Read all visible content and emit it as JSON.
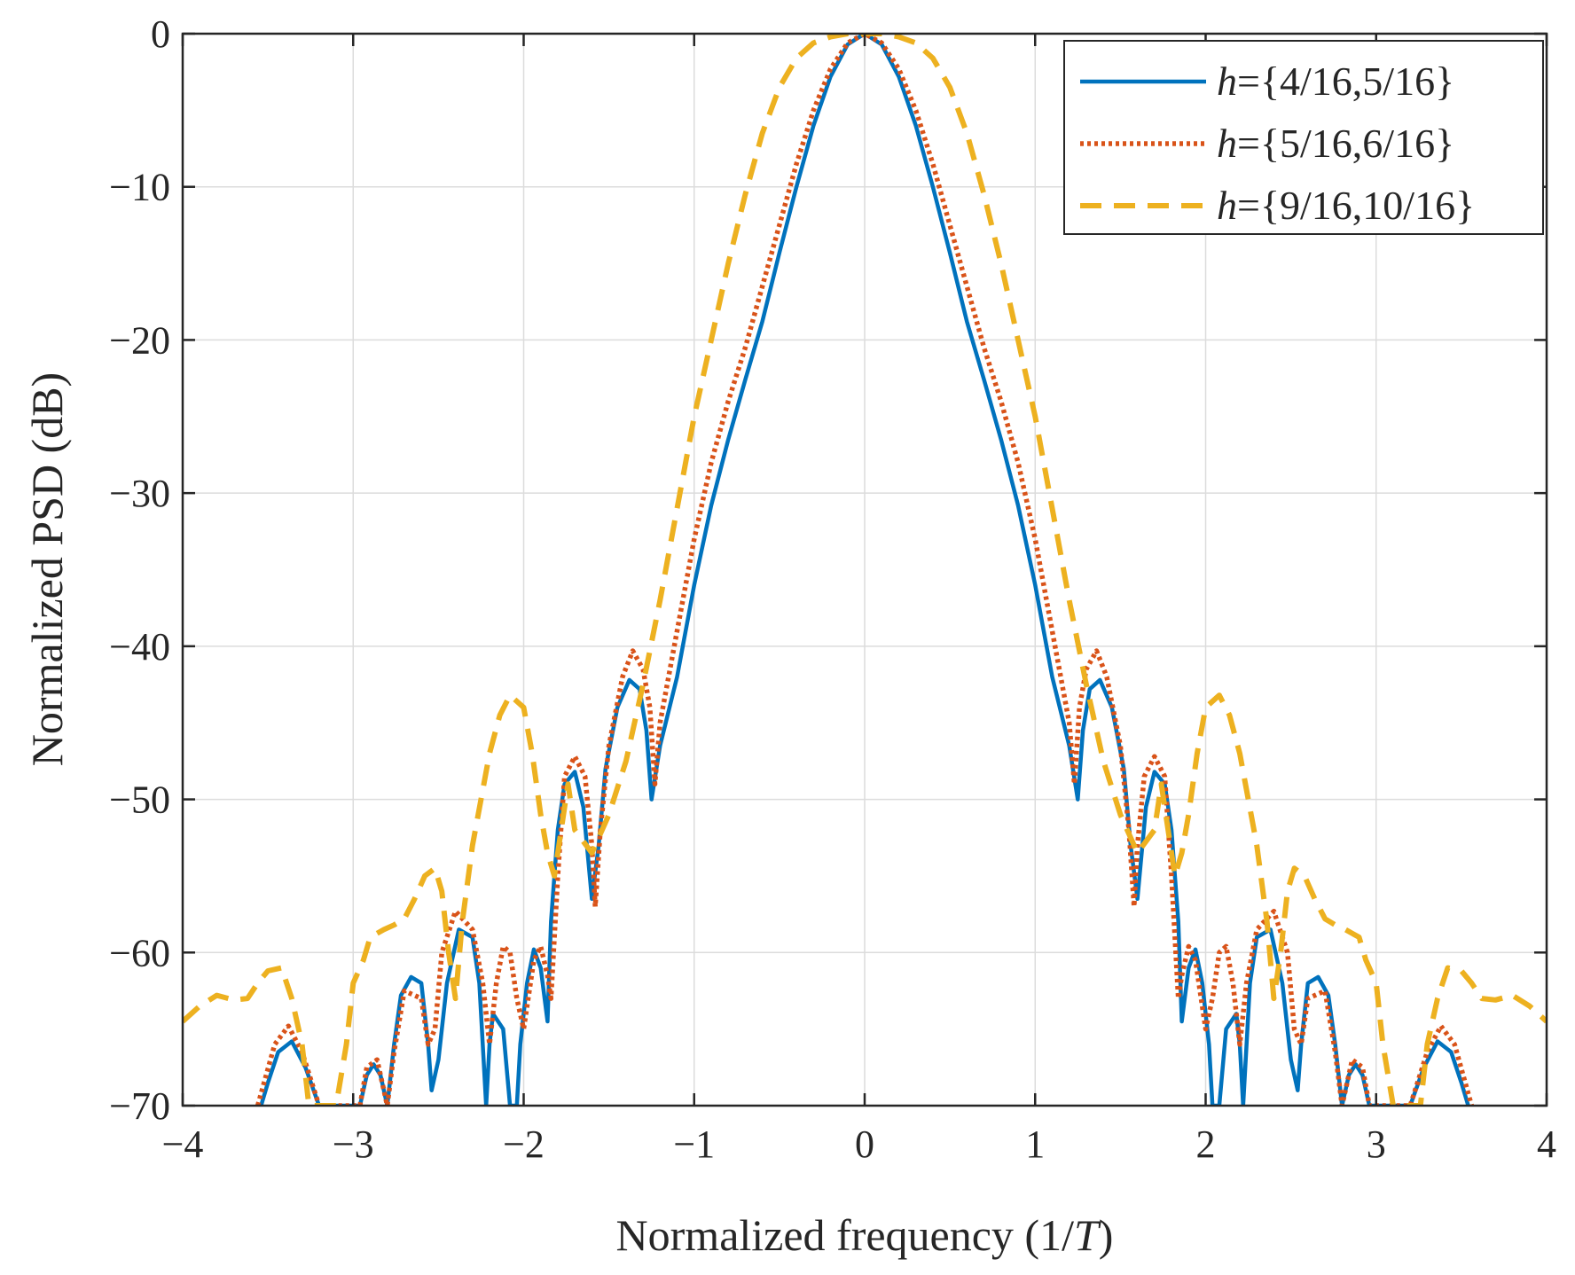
{
  "chart_data": {
    "type": "line",
    "title": "",
    "xlabel": "Normalized frequency (1/",
    "xlabel_italic": "T",
    "xlabel_suffix": ")",
    "ylabel": "Normalized PSD (dB)",
    "xlim": [
      -4,
      4
    ],
    "ylim": [
      -70,
      0
    ],
    "xticks": [
      -4,
      -3,
      -2,
      -1,
      0,
      1,
      2,
      3,
      4
    ],
    "xtick_labels": [
      "−4",
      "−3",
      "−2",
      "−1",
      "0",
      "1",
      "2",
      "3",
      "4"
    ],
    "yticks": [
      0,
      -10,
      -20,
      -30,
      -40,
      -50,
      -60,
      -70
    ],
    "ytick_labels": [
      "0",
      "−10",
      "−20",
      "−30",
      "−40",
      "−50",
      "−60",
      "−70"
    ],
    "grid": true,
    "legend_position": "top-right",
    "series": [
      {
        "name": "h={4/16,5/16}",
        "legend_italic": "h",
        "legend_rest": "={4/16,5/16}",
        "color": "#0072BD",
        "style": "solid",
        "x": [
          0,
          0.1,
          0.2,
          0.3,
          0.4,
          0.5,
          0.6,
          0.7,
          0.8,
          0.9,
          1.0,
          1.1,
          1.2,
          1.25,
          1.28,
          1.32,
          1.38,
          1.45,
          1.52,
          1.56,
          1.6,
          1.65,
          1.7,
          1.76,
          1.8,
          1.84,
          1.86,
          1.9,
          1.94,
          1.98,
          2.02,
          2.04,
          2.08,
          2.12,
          2.18,
          2.2,
          2.22,
          2.26,
          2.3,
          2.38,
          2.45,
          2.5,
          2.54,
          2.56,
          2.6,
          2.66,
          2.72,
          2.76,
          2.8,
          2.84,
          2.88,
          2.92,
          2.96,
          3.0,
          3.02,
          3.2,
          3.28,
          3.36,
          3.44,
          3.5,
          3.54
        ],
        "y": [
          0,
          -0.7,
          -2.8,
          -6.0,
          -10.0,
          -14.3,
          -18.8,
          -22.6,
          -26.5,
          -30.8,
          -36.0,
          -42.0,
          -46.5,
          -50.0,
          -45.5,
          -42.8,
          -42.2,
          -44.0,
          -48.0,
          -53.0,
          -56.5,
          -50.5,
          -48.2,
          -49.0,
          -52.0,
          -58.0,
          -64.5,
          -61.0,
          -59.8,
          -62.0,
          -66.0,
          -70,
          -70,
          -65.0,
          -64.0,
          -66.0,
          -70,
          -62.0,
          -59.0,
          -58.5,
          -62.0,
          -67.0,
          -69.0,
          -66.0,
          -62.0,
          -61.6,
          -62.8,
          -66.0,
          -70,
          -68.0,
          -67.3,
          -68.0,
          -70,
          -70,
          -70,
          -70,
          -67.5,
          -65.8,
          -66.5,
          -68.5,
          -70
        ],
        "mirror": true
      },
      {
        "name": "h={5/16,6/16}",
        "legend_italic": "h",
        "legend_rest": "={5/16,6/16}",
        "color": "#D95319",
        "style": "dotted",
        "x": [
          0,
          0.1,
          0.2,
          0.3,
          0.4,
          0.5,
          0.6,
          0.7,
          0.8,
          0.9,
          1.0,
          1.1,
          1.2,
          1.23,
          1.26,
          1.3,
          1.36,
          1.42,
          1.5,
          1.55,
          1.58,
          1.6,
          1.64,
          1.7,
          1.76,
          1.8,
          1.84,
          1.86,
          1.9,
          1.94,
          2.0,
          2.04,
          2.08,
          2.12,
          2.16,
          2.2,
          2.24,
          2.3,
          2.4,
          2.48,
          2.52,
          2.56,
          2.6,
          2.7,
          2.76,
          2.8,
          2.86,
          2.92,
          2.96,
          3.0,
          3.2,
          3.3,
          3.38,
          3.46,
          3.56
        ],
        "y": [
          0,
          -0.6,
          -2.3,
          -5.0,
          -8.5,
          -12.5,
          -16.5,
          -20.5,
          -24.0,
          -28.0,
          -33.0,
          -39.0,
          -45.0,
          -49.0,
          -44.0,
          -41.5,
          -40.3,
          -42.0,
          -46.5,
          -52.0,
          -57.0,
          -53.0,
          -48.5,
          -47.2,
          -48.5,
          -55.0,
          -63.0,
          -61.5,
          -59.6,
          -60.5,
          -65.0,
          -63.0,
          -60.0,
          -59.6,
          -62.0,
          -66.0,
          -62.0,
          -58.5,
          -57.3,
          -60.0,
          -65.0,
          -66.0,
          -63.0,
          -62.5,
          -66.5,
          -70,
          -67.0,
          -67.5,
          -70,
          -70,
          -70,
          -66.5,
          -64.8,
          -66.0,
          -70
        ],
        "mirror": true
      },
      {
        "name": "h={9/16,10/16}",
        "legend_italic": "h",
        "legend_rest": "={9/16,10/16}",
        "color": "#EDB120",
        "style": "dashed",
        "x": [
          0,
          0.1,
          0.2,
          0.3,
          0.4,
          0.5,
          0.6,
          0.7,
          0.8,
          0.9,
          1.0,
          1.1,
          1.2,
          1.3,
          1.4,
          1.5,
          1.6,
          1.7,
          1.74,
          1.78,
          1.82,
          1.86,
          1.9,
          1.95,
          2.0,
          2.08,
          2.14,
          2.2,
          2.3,
          2.36,
          2.4,
          2.44,
          2.48,
          2.52,
          2.58,
          2.64,
          2.7,
          2.76,
          2.82,
          2.9,
          2.94,
          3.0,
          3.04,
          3.1,
          3.16,
          3.2,
          3.26,
          3.3,
          3.36,
          3.42,
          3.5,
          3.56,
          3.62,
          3.7,
          3.8,
          3.9,
          4.0
        ],
        "y": [
          0,
          0,
          -0.2,
          -0.6,
          -1.6,
          -3.5,
          -6.5,
          -10.5,
          -15.0,
          -20.0,
          -25.0,
          -31.0,
          -37.0,
          -42.5,
          -47.5,
          -51.0,
          -53.5,
          -52.0,
          -49.0,
          -52.0,
          -55.0,
          -53.5,
          -51.0,
          -47.0,
          -44.0,
          -43.2,
          -44.5,
          -47.0,
          -53.0,
          -58.0,
          -63.0,
          -60.0,
          -56.0,
          -54.5,
          -55.0,
          -56.5,
          -57.8,
          -58.2,
          -58.5,
          -59.0,
          -60.5,
          -62.0,
          -66.0,
          -70,
          -70,
          -70,
          -70,
          -66.0,
          -63.0,
          -61.0,
          -61.2,
          -62.0,
          -63.0,
          -63.1,
          -62.8,
          -63.5,
          -64.5
        ],
        "mirror": true
      }
    ]
  }
}
